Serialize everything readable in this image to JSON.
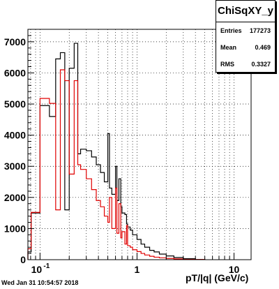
{
  "stats": {
    "title": "ChiSqXY_y",
    "entries_label": "Entries",
    "entries_value": "177273",
    "mean_label": "Mean",
    "mean_value": "0.469",
    "rms_label": "RMS",
    "rms_value": "0.3327"
  },
  "footer_text": "Wed Jan 31 10:54:57 2018",
  "chart_data": {
    "type": "histogram",
    "xlabel": "pT/|q| (GeV/c)",
    "x_scale": "log",
    "xlim": [
      0.075,
      15
    ],
    "ylim": [
      0,
      7400
    ],
    "grid": true,
    "y_ticks": [
      0,
      1000,
      2000,
      3000,
      4000,
      5000,
      6000,
      7000
    ],
    "x_tick_labels": [
      {
        "value": 0.1,
        "label": "10^-1"
      },
      {
        "value": 1,
        "label": "1"
      },
      {
        "value": 10,
        "label": "10"
      }
    ],
    "colors": {
      "black_series": "#000000",
      "red_series": "#e00000"
    },
    "series": [
      {
        "color": "black",
        "bins": [
          [
            0.075,
            0.081,
            250
          ],
          [
            0.081,
            0.1,
            1500
          ],
          [
            0.1,
            0.125,
            4950
          ],
          [
            0.125,
            0.145,
            4600
          ],
          [
            0.145,
            0.162,
            6450
          ],
          [
            0.162,
            0.18,
            6650
          ],
          [
            0.18,
            0.2,
            1600
          ],
          [
            0.2,
            0.225,
            6150
          ],
          [
            0.225,
            0.245,
            6950
          ],
          [
            0.245,
            0.262,
            3400
          ],
          [
            0.262,
            0.3,
            3550
          ],
          [
            0.3,
            0.34,
            3500
          ],
          [
            0.34,
            0.38,
            3300
          ],
          [
            0.38,
            0.42,
            3050
          ],
          [
            0.42,
            0.46,
            2800
          ],
          [
            0.46,
            0.5,
            2500
          ],
          [
            0.5,
            0.52,
            4050
          ],
          [
            0.52,
            0.55,
            2300
          ],
          [
            0.55,
            0.6,
            2100
          ],
          [
            0.6,
            0.62,
            3000
          ],
          [
            0.62,
            0.65,
            1900
          ],
          [
            0.65,
            0.68,
            2600
          ],
          [
            0.68,
            0.7,
            1700
          ],
          [
            0.7,
            0.75,
            1500
          ],
          [
            0.75,
            0.78,
            1450
          ],
          [
            0.78,
            0.8,
            1150
          ],
          [
            0.8,
            0.85,
            1050
          ],
          [
            0.85,
            0.9,
            950
          ],
          [
            0.9,
            1.0,
            800
          ],
          [
            1.0,
            1.1,
            650
          ],
          [
            1.1,
            1.2,
            500
          ],
          [
            1.2,
            1.35,
            400
          ],
          [
            1.35,
            1.5,
            300
          ],
          [
            1.5,
            1.7,
            250
          ],
          [
            1.7,
            2.0,
            180
          ],
          [
            2.0,
            2.4,
            120
          ],
          [
            2.4,
            3.0,
            70
          ],
          [
            3.0,
            4.0,
            30
          ],
          [
            4.0,
            5.0,
            10
          ]
        ]
      },
      {
        "color": "red",
        "bins": [
          [
            0.075,
            0.081,
            350
          ],
          [
            0.081,
            0.1,
            1520
          ],
          [
            0.1,
            0.125,
            5180
          ],
          [
            0.125,
            0.145,
            5020
          ],
          [
            0.145,
            0.162,
            1600
          ],
          [
            0.162,
            0.18,
            6100
          ],
          [
            0.18,
            0.2,
            5750
          ],
          [
            0.2,
            0.225,
            2750
          ],
          [
            0.225,
            0.245,
            5750
          ],
          [
            0.245,
            0.262,
            3050
          ],
          [
            0.262,
            0.3,
            2900
          ],
          [
            0.3,
            0.34,
            2600
          ],
          [
            0.34,
            0.38,
            2250
          ],
          [
            0.38,
            0.42,
            1900
          ],
          [
            0.42,
            0.46,
            1700
          ],
          [
            0.46,
            0.5,
            1400
          ],
          [
            0.5,
            0.52,
            1200
          ],
          [
            0.52,
            0.55,
            2000
          ],
          [
            0.55,
            0.6,
            1000
          ],
          [
            0.6,
            0.62,
            2300
          ],
          [
            0.62,
            0.65,
            850
          ],
          [
            0.65,
            0.68,
            1800
          ],
          [
            0.68,
            0.7,
            700
          ],
          [
            0.7,
            0.75,
            900
          ],
          [
            0.75,
            0.78,
            500
          ],
          [
            0.78,
            0.8,
            1100
          ],
          [
            0.8,
            0.85,
            450
          ],
          [
            0.85,
            0.9,
            400
          ],
          [
            0.9,
            1.0,
            320
          ],
          [
            1.0,
            1.1,
            260
          ],
          [
            1.1,
            1.2,
            200
          ],
          [
            1.2,
            1.35,
            150
          ],
          [
            1.35,
            1.5,
            110
          ],
          [
            1.5,
            1.7,
            80
          ],
          [
            1.7,
            2.0,
            60
          ],
          [
            2.0,
            2.4,
            40
          ],
          [
            2.4,
            3.0,
            25
          ],
          [
            3.0,
            4.0,
            10
          ],
          [
            4.0,
            5.0,
            5
          ]
        ]
      }
    ]
  }
}
